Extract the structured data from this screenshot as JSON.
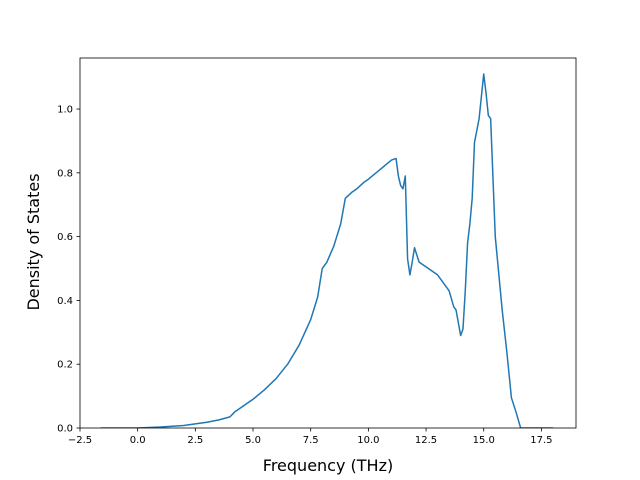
{
  "chart_data": {
    "type": "line",
    "title": "",
    "xlabel": "Frequency (THz)",
    "ylabel": "Density of States",
    "xlim": [
      -2.5,
      19.0
    ],
    "ylim": [
      0.0,
      1.16
    ],
    "xticks": [
      -2.5,
      0.0,
      2.5,
      5.0,
      7.5,
      10.0,
      12.5,
      15.0,
      17.5
    ],
    "xtick_labels": [
      "−2.5",
      "0.0",
      "2.5",
      "5.0",
      "7.5",
      "10.0",
      "12.5",
      "15.0",
      "17.5"
    ],
    "yticks": [
      0.0,
      0.2,
      0.4,
      0.6,
      0.8,
      1.0
    ],
    "ytick_labels": [
      "0.0",
      "0.2",
      "0.4",
      "0.6",
      "0.8",
      "1.0"
    ],
    "grid": false,
    "legend": "none",
    "series": [
      {
        "color": "#1f77b4",
        "x": [
          -1.6,
          0.0,
          1.0,
          2.0,
          3.0,
          3.5,
          4.0,
          4.2,
          4.5,
          5.0,
          5.5,
          6.0,
          6.5,
          7.0,
          7.5,
          7.8,
          8.0,
          8.2,
          8.5,
          8.8,
          9.0,
          9.3,
          9.5,
          9.8,
          10.0,
          10.5,
          11.0,
          11.2,
          11.3,
          11.4,
          11.5,
          11.6,
          11.7,
          11.8,
          11.9,
          12.0,
          12.2,
          12.5,
          13.0,
          13.5,
          13.7,
          13.8,
          14.0,
          14.1,
          14.2,
          14.3,
          14.4,
          14.5,
          14.6,
          14.8,
          14.9,
          15.0,
          15.1,
          15.2,
          15.3,
          15.5,
          15.8,
          16.0,
          16.2,
          16.4,
          16.6,
          17.0,
          18.0
        ],
        "y": [
          0.0,
          0.0,
          0.003,
          0.008,
          0.018,
          0.025,
          0.035,
          0.05,
          0.065,
          0.09,
          0.12,
          0.155,
          0.2,
          0.26,
          0.34,
          0.41,
          0.5,
          0.52,
          0.57,
          0.64,
          0.72,
          0.74,
          0.75,
          0.77,
          0.78,
          0.81,
          0.84,
          0.845,
          0.79,
          0.76,
          0.75,
          0.79,
          0.53,
          0.48,
          0.52,
          0.565,
          0.52,
          0.505,
          0.48,
          0.43,
          0.38,
          0.37,
          0.29,
          0.31,
          0.43,
          0.58,
          0.64,
          0.72,
          0.895,
          0.97,
          1.04,
          1.11,
          1.05,
          0.98,
          0.97,
          0.6,
          0.37,
          0.24,
          0.095,
          0.05,
          0.0,
          0.0,
          0.0
        ]
      }
    ]
  }
}
